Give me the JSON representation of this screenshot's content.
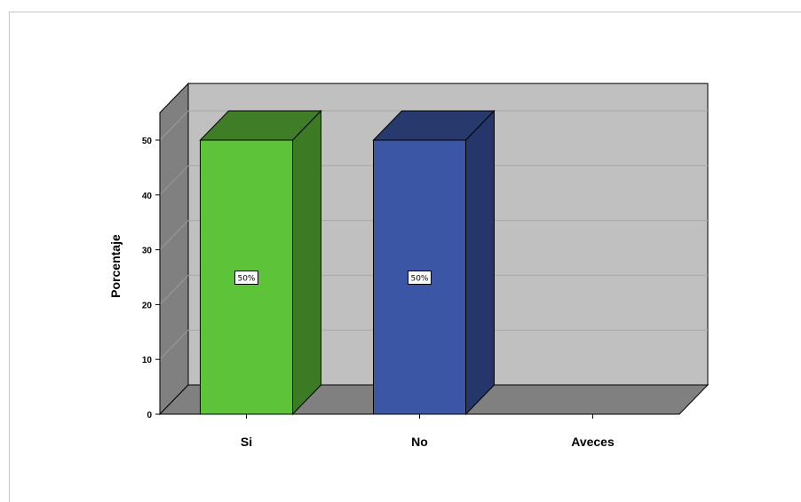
{
  "chart_data": {
    "type": "bar",
    "categories": [
      "Si",
      "No",
      "Aveces"
    ],
    "values": [
      50,
      50,
      0
    ],
    "data_labels": [
      "50%",
      "50%",
      ""
    ],
    "ylabel": "Porcentaje",
    "xlabel": "",
    "yticks": [
      0,
      10,
      20,
      30,
      40,
      50
    ],
    "ylim": [
      0,
      55
    ],
    "grid": true,
    "style": "3d",
    "colors": {
      "Si": {
        "front": "#5dc43a",
        "side": "#3c7a24",
        "top": "#3f7e27"
      },
      "No": {
        "front": "#3c56a6",
        "side": "#25366a",
        "top": "#28396e"
      },
      "wall": "#c0c0c0",
      "floor": "#808080",
      "side_wall": "#808080",
      "grid": "#a8a8a8"
    }
  }
}
